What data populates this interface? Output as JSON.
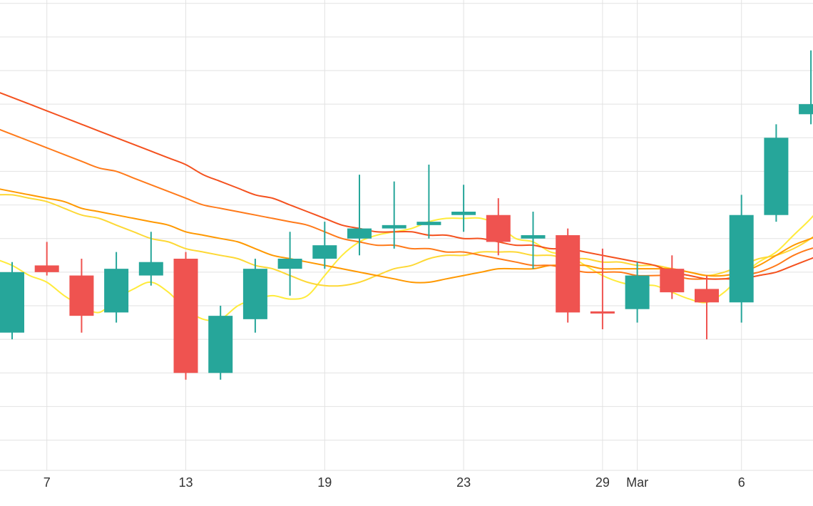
{
  "chart_data": {
    "type": "candlestick",
    "grid": true,
    "y_axis_labels_visible": false,
    "x_ticks": [
      {
        "x": 1,
        "label": "7"
      },
      {
        "x": 5,
        "label": "13"
      },
      {
        "x": 9,
        "label": "19"
      },
      {
        "x": 13,
        "label": "23"
      },
      {
        "x": 17,
        "label": "29"
      },
      {
        "x": 18,
        "label": "Mar"
      },
      {
        "x": 21,
        "label": "6"
      }
    ],
    "y_grid_levels": [
      20,
      30,
      40,
      50,
      60,
      70,
      80,
      90,
      100,
      110,
      120,
      130,
      140,
      150
    ],
    "ylim": [
      11,
      151
    ],
    "candles": [
      {
        "i": 0,
        "open": 52,
        "close": 70,
        "high": 73,
        "low": 50,
        "dir": "up"
      },
      {
        "i": 1,
        "open": 72,
        "close": 70,
        "high": 79,
        "low": 69,
        "dir": "down"
      },
      {
        "i": 2,
        "open": 69,
        "close": 57,
        "high": 74,
        "low": 52,
        "dir": "down"
      },
      {
        "i": 3,
        "open": 58,
        "close": 71,
        "high": 76,
        "low": 55,
        "dir": "up"
      },
      {
        "i": 4,
        "open": 69,
        "close": 73,
        "high": 82,
        "low": 66,
        "dir": "up"
      },
      {
        "i": 5,
        "open": 74,
        "close": 40,
        "high": 76,
        "low": 38,
        "dir": "down"
      },
      {
        "i": 6,
        "open": 40,
        "close": 57,
        "high": 60,
        "low": 38,
        "dir": "up"
      },
      {
        "i": 7,
        "open": 56,
        "close": 71,
        "high": 74,
        "low": 52,
        "dir": "up"
      },
      {
        "i": 8,
        "open": 71,
        "close": 74,
        "high": 82,
        "low": 63,
        "dir": "up"
      },
      {
        "i": 9,
        "open": 74,
        "close": 78,
        "high": 85,
        "low": 71,
        "dir": "up"
      },
      {
        "i": 10,
        "open": 80,
        "close": 83,
        "high": 99,
        "low": 75,
        "dir": "up"
      },
      {
        "i": 11,
        "open": 83,
        "close": 84,
        "high": 97,
        "low": 77,
        "dir": "up"
      },
      {
        "i": 12,
        "open": 84,
        "close": 85,
        "high": 102,
        "low": 80,
        "dir": "up"
      },
      {
        "i": 13,
        "open": 87,
        "close": 88,
        "high": 96,
        "low": 82,
        "dir": "up"
      },
      {
        "i": 14,
        "open": 87,
        "close": 79,
        "high": 92,
        "low": 75,
        "dir": "down"
      },
      {
        "i": 15,
        "open": 80,
        "close": 81,
        "high": 88,
        "low": 71,
        "dir": "up"
      },
      {
        "i": 16,
        "open": 81,
        "close": 58,
        "high": 83,
        "low": 55,
        "dir": "down"
      },
      {
        "i": 17,
        "open": 58,
        "close": 58,
        "high": 77,
        "low": 53,
        "dir": "down"
      },
      {
        "i": 18,
        "open": 59,
        "close": 69,
        "high": 73,
        "low": 55,
        "dir": "up"
      },
      {
        "i": 19,
        "open": 71,
        "close": 64,
        "high": 75,
        "low": 62,
        "dir": "down"
      },
      {
        "i": 20,
        "open": 65,
        "close": 61,
        "high": 69,
        "low": 50,
        "dir": "down"
      },
      {
        "i": 21,
        "open": 61,
        "close": 87,
        "high": 93,
        "low": 55,
        "dir": "up"
      },
      {
        "i": 22,
        "open": 87,
        "close": 110,
        "high": 114,
        "low": 85,
        "dir": "up"
      },
      {
        "i": 23,
        "open": 117,
        "close": 120,
        "high": 136,
        "low": 114,
        "dir": "up"
      }
    ],
    "lines": [
      {
        "color": "#ffeb3b",
        "values": [
          [
            -0.5,
            74
          ],
          [
            0,
            72
          ],
          [
            0.5,
            69
          ],
          [
            1,
            67
          ],
          [
            1.5,
            63
          ],
          [
            2,
            60
          ],
          [
            2.5,
            58
          ],
          [
            3,
            62
          ],
          [
            3.5,
            65
          ],
          [
            4,
            67
          ],
          [
            4.5,
            64
          ],
          [
            5,
            59
          ],
          [
            5.5,
            56
          ],
          [
            6,
            56
          ],
          [
            6.5,
            60
          ],
          [
            7,
            62
          ],
          [
            7.5,
            63
          ],
          [
            8,
            62
          ],
          [
            8.5,
            63
          ],
          [
            9,
            69
          ],
          [
            9.5,
            75
          ],
          [
            10,
            79
          ],
          [
            10.5,
            81
          ],
          [
            11,
            82
          ],
          [
            11.5,
            83
          ],
          [
            12,
            85
          ],
          [
            12.5,
            86
          ],
          [
            13,
            86
          ],
          [
            13.5,
            86
          ],
          [
            14,
            84
          ],
          [
            14.5,
            80
          ],
          [
            15,
            79
          ],
          [
            15.5,
            76
          ],
          [
            16,
            75
          ],
          [
            16.5,
            72
          ],
          [
            17,
            69
          ],
          [
            17.5,
            67
          ],
          [
            18,
            66
          ],
          [
            18.5,
            66
          ],
          [
            19,
            64
          ],
          [
            19.5,
            62
          ],
          [
            20,
            61
          ],
          [
            20.5,
            64
          ],
          [
            21,
            69
          ],
          [
            21.5,
            73
          ],
          [
            22,
            76
          ],
          [
            22.5,
            81
          ],
          [
            23,
            86
          ],
          [
            23.5,
            92
          ]
        ]
      },
      {
        "color": "#fdd835",
        "values": [
          [
            -0.5,
            93
          ],
          [
            0,
            93
          ],
          [
            0.5,
            92
          ],
          [
            1,
            91
          ],
          [
            1.5,
            89
          ],
          [
            2,
            87
          ],
          [
            2.5,
            86
          ],
          [
            3,
            84
          ],
          [
            3.5,
            82
          ],
          [
            4,
            80
          ],
          [
            4.5,
            79
          ],
          [
            5,
            77
          ],
          [
            5.5,
            76
          ],
          [
            6,
            75
          ],
          [
            6.5,
            74
          ],
          [
            7,
            72
          ],
          [
            7.5,
            71
          ],
          [
            8,
            69
          ],
          [
            8.5,
            67
          ],
          [
            9,
            66
          ],
          [
            9.5,
            66
          ],
          [
            10,
            67
          ],
          [
            10.5,
            69
          ],
          [
            11,
            71
          ],
          [
            11.5,
            72
          ],
          [
            12,
            74
          ],
          [
            12.5,
            75
          ],
          [
            13,
            75
          ],
          [
            13.5,
            76
          ],
          [
            14,
            76
          ],
          [
            14.5,
            76
          ],
          [
            15,
            75
          ],
          [
            15.5,
            75
          ],
          [
            16,
            74
          ],
          [
            16.5,
            74
          ],
          [
            17,
            73
          ],
          [
            17.5,
            73
          ],
          [
            18,
            72
          ],
          [
            18.5,
            72
          ],
          [
            19,
            71
          ],
          [
            19.5,
            70
          ],
          [
            20,
            69
          ],
          [
            20.5,
            70
          ],
          [
            21,
            72
          ],
          [
            21.5,
            74
          ],
          [
            22,
            75
          ],
          [
            22.5,
            77
          ],
          [
            23,
            80
          ],
          [
            23.5,
            84
          ]
        ]
      },
      {
        "color": "#ff9800",
        "values": [
          [
            -0.5,
            95
          ],
          [
            0,
            94
          ],
          [
            0.5,
            93
          ],
          [
            1,
            92
          ],
          [
            1.5,
            91
          ],
          [
            2,
            89
          ],
          [
            2.5,
            88
          ],
          [
            3,
            87
          ],
          [
            3.5,
            86
          ],
          [
            4,
            85
          ],
          [
            4.5,
            84
          ],
          [
            5,
            82
          ],
          [
            5.5,
            81
          ],
          [
            6,
            80
          ],
          [
            6.5,
            79
          ],
          [
            7,
            77
          ],
          [
            7.5,
            75
          ],
          [
            8,
            74
          ],
          [
            8.5,
            73
          ],
          [
            9,
            72
          ],
          [
            9.5,
            71
          ],
          [
            10,
            70
          ],
          [
            10.5,
            69
          ],
          [
            11,
            68
          ],
          [
            11.5,
            67
          ],
          [
            12,
            67
          ],
          [
            12.5,
            68
          ],
          [
            13,
            69
          ],
          [
            13.5,
            70
          ],
          [
            14,
            71
          ],
          [
            14.5,
            71
          ],
          [
            15,
            71
          ],
          [
            15.5,
            72
          ],
          [
            16,
            72
          ],
          [
            16.5,
            72
          ],
          [
            17,
            71
          ],
          [
            17.5,
            71
          ],
          [
            18,
            71
          ],
          [
            18.5,
            71
          ],
          [
            19,
            71
          ],
          [
            19.5,
            70
          ],
          [
            20,
            69
          ],
          [
            20.5,
            69
          ],
          [
            21,
            70
          ],
          [
            21.5,
            72
          ],
          [
            22,
            75
          ],
          [
            22.5,
            78
          ],
          [
            23,
            80
          ],
          [
            23.5,
            82
          ]
        ]
      },
      {
        "color": "#ff7a1a",
        "values": [
          [
            -0.5,
            113
          ],
          [
            0,
            111
          ],
          [
            0.5,
            109
          ],
          [
            1,
            107
          ],
          [
            1.5,
            105
          ],
          [
            2,
            103
          ],
          [
            2.5,
            101
          ],
          [
            3,
            100
          ],
          [
            3.5,
            98
          ],
          [
            4,
            96
          ],
          [
            4.5,
            94
          ],
          [
            5,
            92
          ],
          [
            5.5,
            90
          ],
          [
            6,
            89
          ],
          [
            6.5,
            88
          ],
          [
            7,
            87
          ],
          [
            7.5,
            86
          ],
          [
            8,
            85
          ],
          [
            8.5,
            84
          ],
          [
            9,
            82
          ],
          [
            9.5,
            80
          ],
          [
            10,
            79
          ],
          [
            10.5,
            78
          ],
          [
            11,
            78
          ],
          [
            11.5,
            77
          ],
          [
            12,
            77
          ],
          [
            12.5,
            76
          ],
          [
            13,
            76
          ],
          [
            13.5,
            75
          ],
          [
            14,
            74
          ],
          [
            14.5,
            73
          ],
          [
            15,
            72
          ],
          [
            15.5,
            72
          ],
          [
            16,
            71
          ],
          [
            16.5,
            70
          ],
          [
            17,
            70
          ],
          [
            17.5,
            70
          ],
          [
            18,
            69
          ],
          [
            18.5,
            69
          ],
          [
            19,
            69
          ],
          [
            19.5,
            68
          ],
          [
            20,
            68
          ],
          [
            20.5,
            68
          ],
          [
            21,
            69
          ],
          [
            21.5,
            70
          ],
          [
            22,
            72
          ],
          [
            22.5,
            75
          ],
          [
            23,
            77
          ],
          [
            23.5,
            78
          ]
        ]
      },
      {
        "color": "#f4511e",
        "values": [
          [
            -0.5,
            124
          ],
          [
            0,
            122
          ],
          [
            0.5,
            120
          ],
          [
            1,
            118
          ],
          [
            1.5,
            116
          ],
          [
            2,
            114
          ],
          [
            2.5,
            112
          ],
          [
            3,
            110
          ],
          [
            3.5,
            108
          ],
          [
            4,
            106
          ],
          [
            4.5,
            104
          ],
          [
            5,
            102
          ],
          [
            5.5,
            99
          ],
          [
            6,
            97
          ],
          [
            6.5,
            95
          ],
          [
            7,
            93
          ],
          [
            7.5,
            92
          ],
          [
            8,
            90
          ],
          [
            8.5,
            88
          ],
          [
            9,
            86
          ],
          [
            9.5,
            84
          ],
          [
            10,
            83
          ],
          [
            10.5,
            82
          ],
          [
            11,
            82
          ],
          [
            11.5,
            82
          ],
          [
            12,
            81
          ],
          [
            12.5,
            81
          ],
          [
            13,
            80
          ],
          [
            13.5,
            80
          ],
          [
            14,
            79
          ],
          [
            14.5,
            78
          ],
          [
            15,
            78
          ],
          [
            15.5,
            77
          ],
          [
            16,
            77
          ],
          [
            16.5,
            76
          ],
          [
            17,
            75
          ],
          [
            17.5,
            74
          ],
          [
            18,
            73
          ],
          [
            18.5,
            72
          ],
          [
            19,
            70
          ],
          [
            19.5,
            69
          ],
          [
            20,
            68
          ],
          [
            20.5,
            68
          ],
          [
            21,
            68
          ],
          [
            21.5,
            69
          ],
          [
            22,
            70
          ],
          [
            22.5,
            72
          ],
          [
            23,
            74
          ],
          [
            23.5,
            76
          ]
        ]
      }
    ],
    "colors": {
      "up": "#26a69a",
      "down": "#ef5350",
      "grid": "#e2e2e2",
      "axis_text": "#333333"
    }
  }
}
